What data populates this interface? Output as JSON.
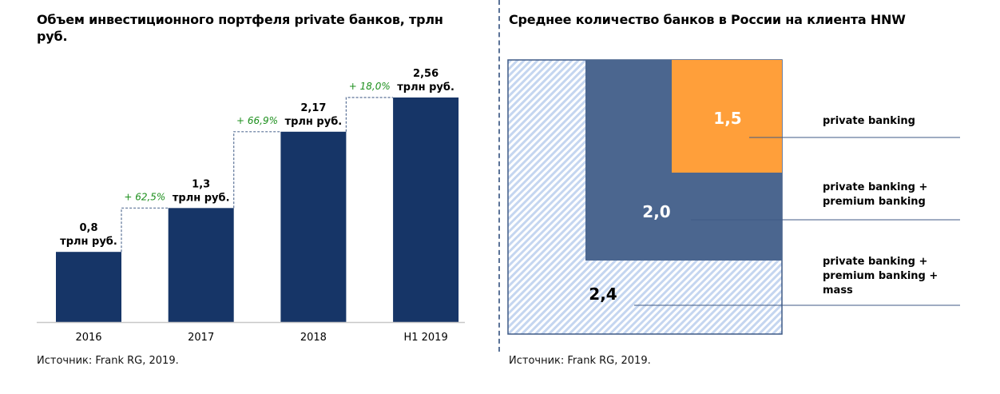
{
  "chart_data": [
    {
      "type": "bar",
      "title": "Объем инвестиционного портфеля private банков, трлн руб.",
      "categories": [
        "2016",
        "2017",
        "2018",
        "H1 2019"
      ],
      "values": [
        0.8,
        1.3,
        2.17,
        2.56
      ],
      "value_labels": [
        "0,8",
        "1,3",
        "2,17",
        "2,56"
      ],
      "value_unit": "трлн руб.",
      "growth_labels": [
        "+ 62,5%",
        "+ 66,9%",
        "+ 18,0%"
      ],
      "xlabel": "",
      "ylabel": "",
      "ylim": [
        0,
        2.56
      ],
      "grid": false,
      "colors": {
        "bar": "#163567",
        "growth": "#1c8f1c",
        "connector": "#5a7297"
      },
      "source": "Источник: Frank RG, 2019."
    },
    {
      "type": "area",
      "title": "Среднее количество банков в России на клиента HNW",
      "series": [
        {
          "name": "private banking",
          "value": 1.5,
          "label": "1,5",
          "legend": [
            "private banking"
          ],
          "color": "#ff9f3a"
        },
        {
          "name": "private banking + premium banking",
          "value": 2.0,
          "label": "2,0",
          "legend": [
            "private banking +",
            "premium banking"
          ],
          "color": "#4b668f"
        },
        {
          "name": "private banking + premium banking + mass",
          "value": 2.4,
          "label": "2,4",
          "legend": [
            "private banking +",
            "premium banking +",
            "mass"
          ],
          "color": "#c5d6f0"
        }
      ],
      "source": "Источник: Frank RG, 2019."
    }
  ]
}
